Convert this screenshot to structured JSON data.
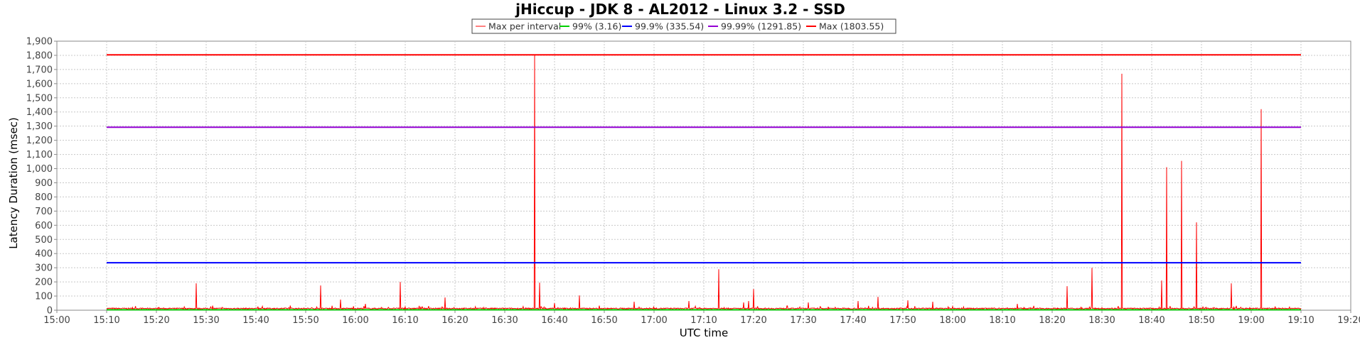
{
  "chart_data": {
    "type": "line",
    "title": "jHiccup - JDK 8 - AL2012 - Linux 3.2 - SSD",
    "xlabel": "UTC time",
    "ylabel": "Latency Duration (msec)",
    "ylim": [
      0,
      1900
    ],
    "yticks": [
      0,
      100,
      200,
      300,
      400,
      500,
      600,
      700,
      800,
      900,
      1000,
      1100,
      1200,
      1300,
      1400,
      1500,
      1600,
      1700,
      1800,
      1900
    ],
    "ytick_labels": [
      "0",
      "100",
      "200",
      "300",
      "400",
      "500",
      "600",
      "700",
      "800",
      "900",
      "1,000",
      "1,100",
      "1,200",
      "1,300",
      "1,400",
      "1,500",
      "1,600",
      "1,700",
      "1,800",
      "1,900"
    ],
    "xlim": [
      "15:00",
      "19:20"
    ],
    "xticks": [
      "15:00",
      "15:10",
      "15:20",
      "15:30",
      "15:40",
      "15:50",
      "16:00",
      "16:10",
      "16:20",
      "16:30",
      "16:40",
      "16:50",
      "17:00",
      "17:10",
      "17:20",
      "17:30",
      "17:40",
      "17:50",
      "18:00",
      "18:10",
      "18:20",
      "18:30",
      "18:40",
      "18:50",
      "19:00",
      "19:10",
      "19:20"
    ],
    "grid": true,
    "legend_position": "top-center",
    "series": [
      {
        "name": "Max per interval",
        "color": "#ff0000",
        "kind": "spikes",
        "span": [
          "15:10",
          "19:10"
        ],
        "baseline": 8,
        "peaks": [
          {
            "x": "15:28",
            "y": 190
          },
          {
            "x": "15:53",
            "y": 175
          },
          {
            "x": "15:57",
            "y": 75
          },
          {
            "x": "16:02",
            "y": 45
          },
          {
            "x": "16:09",
            "y": 200
          },
          {
            "x": "16:18",
            "y": 90
          },
          {
            "x": "16:36",
            "y": 1803.55
          },
          {
            "x": "16:37",
            "y": 195
          },
          {
            "x": "16:40",
            "y": 50
          },
          {
            "x": "16:45",
            "y": 105
          },
          {
            "x": "16:56",
            "y": 60
          },
          {
            "x": "17:07",
            "y": 65
          },
          {
            "x": "17:13",
            "y": 290
          },
          {
            "x": "17:18",
            "y": 55
          },
          {
            "x": "17:19",
            "y": 65
          },
          {
            "x": "17:20",
            "y": 150
          },
          {
            "x": "17:31",
            "y": 55
          },
          {
            "x": "17:41",
            "y": 65
          },
          {
            "x": "17:45",
            "y": 95
          },
          {
            "x": "17:51",
            "y": 70
          },
          {
            "x": "17:56",
            "y": 60
          },
          {
            "x": "18:13",
            "y": 45
          },
          {
            "x": "18:23",
            "y": 170
          },
          {
            "x": "18:28",
            "y": 300
          },
          {
            "x": "18:34",
            "y": 1670
          },
          {
            "x": "18:42",
            "y": 210
          },
          {
            "x": "18:43",
            "y": 1010
          },
          {
            "x": "18:46",
            "y": 1055
          },
          {
            "x": "18:49",
            "y": 620
          },
          {
            "x": "18:56",
            "y": 190
          },
          {
            "x": "19:02",
            "y": 1420
          }
        ]
      },
      {
        "name": "99%",
        "label": "99% (3.16)",
        "color": "#00d000",
        "constant": 3.16,
        "span": [
          "15:10",
          "19:10"
        ]
      },
      {
        "name": "99.9%",
        "label": "99.9% (335.54)",
        "color": "#0000ff",
        "constant": 335.54,
        "span": [
          "15:10",
          "19:10"
        ]
      },
      {
        "name": "99.99%",
        "label": "99.99% (1291.85)",
        "color": "#9400d3",
        "constant": 1291.85,
        "span": [
          "15:10",
          "19:10"
        ]
      },
      {
        "name": "Max",
        "label": "Max (1803.55)",
        "color": "#ff0000",
        "constant": 1803.55,
        "span": [
          "15:10",
          "19:10"
        ]
      }
    ]
  }
}
